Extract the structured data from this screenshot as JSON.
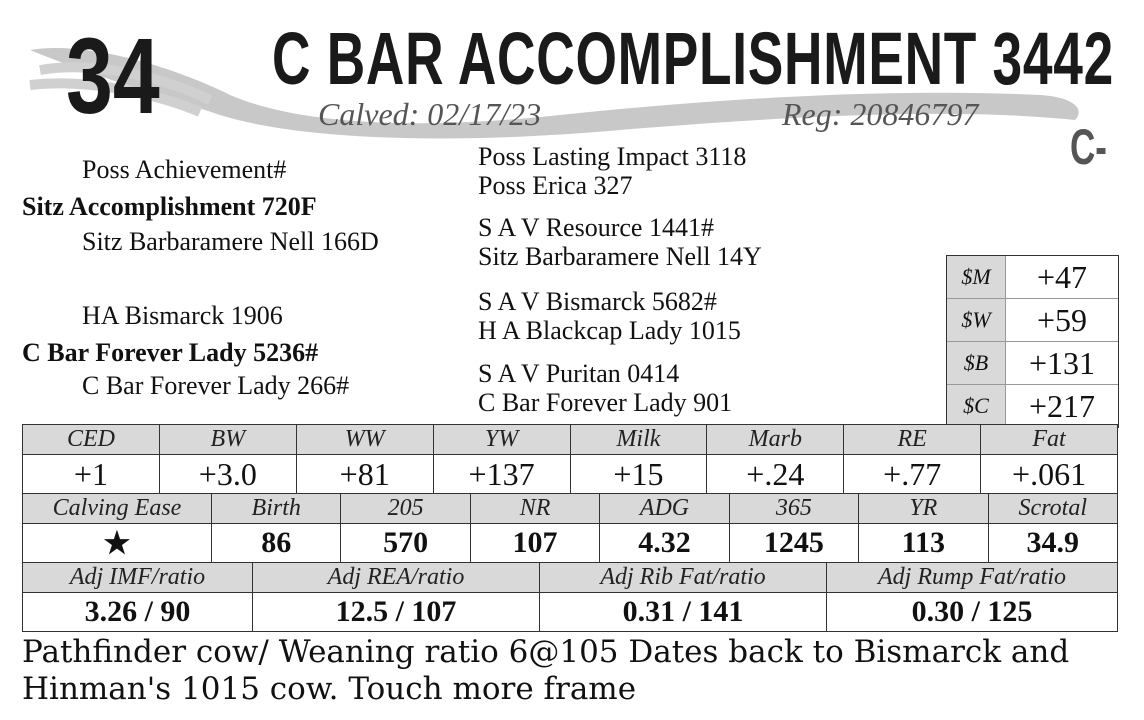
{
  "header": {
    "lot_number": "34",
    "name": "C BAR ACCOMPLISHMENT 3442",
    "calved_label": "Calved: 02/17/23",
    "reg_label": "Reg: 20846797",
    "grade": "C-"
  },
  "pedigree": {
    "sire": "Sitz Accomplishment 720F",
    "sire_sire": "Poss Achievement#",
    "sire_dam": "Sitz Barbaramere Nell 166D",
    "dam": "C Bar Forever Lady 5236#",
    "dam_sire": "HA Bismarck 1906",
    "dam_dam": "C Bar Forever Lady 266#",
    "ggp": [
      "Poss Lasting Impact 3118",
      "Poss Erica 327",
      "S A V Resource 1441#",
      "Sitz Barbaramere Nell 14Y",
      "S A V Bismarck 5682#",
      "H A Blackcap Lady 1015",
      "S A V Puritan 0414",
      "C Bar Forever Lady 901"
    ]
  },
  "indexes": [
    {
      "label": "$M",
      "value": "+47"
    },
    {
      "label": "$W",
      "value": "+59"
    },
    {
      "label": "$B",
      "value": "+131"
    },
    {
      "label": "$C",
      "value": "+217"
    }
  ],
  "epds": {
    "headers": [
      "CED",
      "BW",
      "WW",
      "YW",
      "Milk",
      "Marb",
      "RE",
      "Fat"
    ],
    "values": [
      "+1",
      "+3.0",
      "+81",
      "+137",
      "+15",
      "+.24",
      "+.77",
      "+.061"
    ]
  },
  "performance": {
    "headers": [
      "Calving Ease",
      "Birth",
      "205",
      "NR",
      "ADG",
      "365",
      "YR",
      "Scrotal"
    ],
    "values": [
      "★",
      "86",
      "570",
      "107",
      "4.32",
      "1245",
      "113",
      "34.9"
    ]
  },
  "ultrasound": {
    "headers": [
      "Adj IMF/ratio",
      "Adj REA/ratio",
      "Adj Rib Fat/ratio",
      "Adj Rump Fat/ratio"
    ],
    "values": [
      "3.26 / 90",
      "12.5 / 107",
      "0.31 / 141",
      "0.30 / 125"
    ]
  },
  "notes": "Pathfinder cow/  Weaning ratio 6@105   Dates back to Bismarck and Hinman's 1015 cow.   Touch more frame"
}
